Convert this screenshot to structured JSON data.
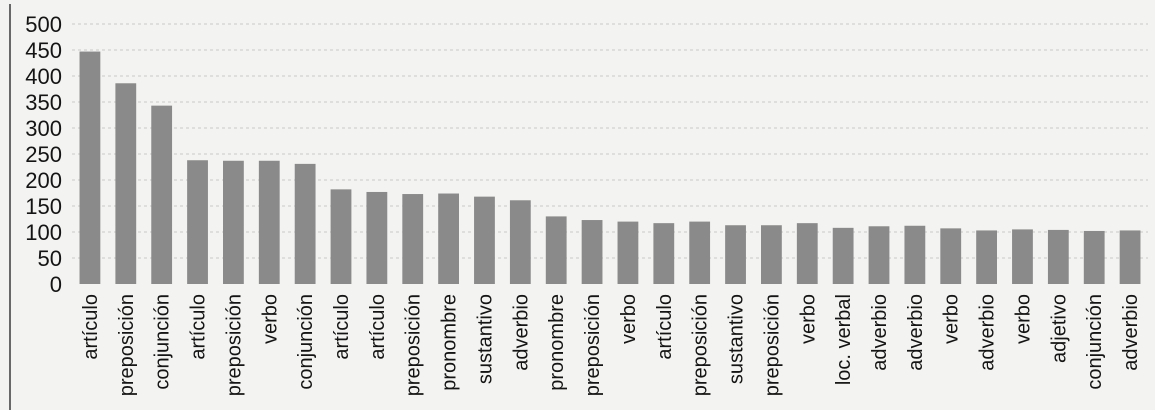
{
  "chart_data": {
    "type": "bar",
    "title": "",
    "xlabel": "",
    "ylabel": "",
    "ylim": [
      0,
      500
    ],
    "yticks": [
      0,
      50,
      100,
      150,
      200,
      250,
      300,
      350,
      400,
      450,
      500
    ],
    "grid": true,
    "legend": "none",
    "bar_color": "#8a8a8a",
    "categories": [
      "artículo",
      "preposición",
      "conjunción",
      "artículo",
      "preposición",
      "verbo",
      "conjunción",
      "artículo",
      "artículo",
      "preposición",
      "pronombre",
      "sustantivo",
      "adverbio",
      "pronombre",
      "preposición",
      "verbo",
      "artículo",
      "preposición",
      "sustantivo",
      "preposición",
      "verbo",
      "loc. verbal",
      "adverbio",
      "adverbio",
      "verbo",
      "adverbio",
      "verbo",
      "adjetivo",
      "conjunción",
      "adverbio"
    ],
    "values": [
      447,
      386,
      343,
      238,
      237,
      237,
      231,
      182,
      177,
      173,
      174,
      168,
      161,
      130,
      123,
      120,
      117,
      120,
      113,
      113,
      117,
      108,
      111,
      112,
      107,
      103,
      105,
      104,
      102,
      103
    ]
  }
}
